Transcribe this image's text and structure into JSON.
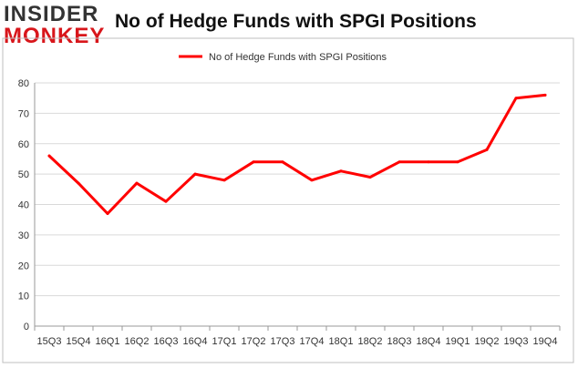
{
  "logo": {
    "line1": "INSIDER",
    "line2": "MONKEY"
  },
  "colors": {
    "line": "#ff0000",
    "logo_red": "#d8161b",
    "grid": "#d9d9d9",
    "frame": "#bfbfbf"
  },
  "chart_data": {
    "type": "line",
    "title": "No of Hedge Funds with SPGI Positions",
    "categories": [
      "15Q3",
      "15Q4",
      "16Q1",
      "16Q2",
      "16Q3",
      "16Q4",
      "17Q1",
      "17Q2",
      "17Q3",
      "17Q4",
      "18Q1",
      "18Q2",
      "18Q3",
      "18Q4",
      "19Q1",
      "19Q2",
      "19Q3",
      "19Q4"
    ],
    "series": [
      {
        "name": "No of Hedge Funds with SPGI Positions",
        "values": [
          56,
          47,
          37,
          47,
          41,
          50,
          48,
          54,
          54,
          48,
          51,
          49,
          54,
          54,
          54,
          58,
          75,
          76
        ]
      }
    ],
    "ylim": [
      0,
      80
    ],
    "yticks": [
      0,
      10,
      20,
      30,
      40,
      50,
      60,
      70,
      80
    ],
    "grid": true,
    "legend_position": "top"
  }
}
